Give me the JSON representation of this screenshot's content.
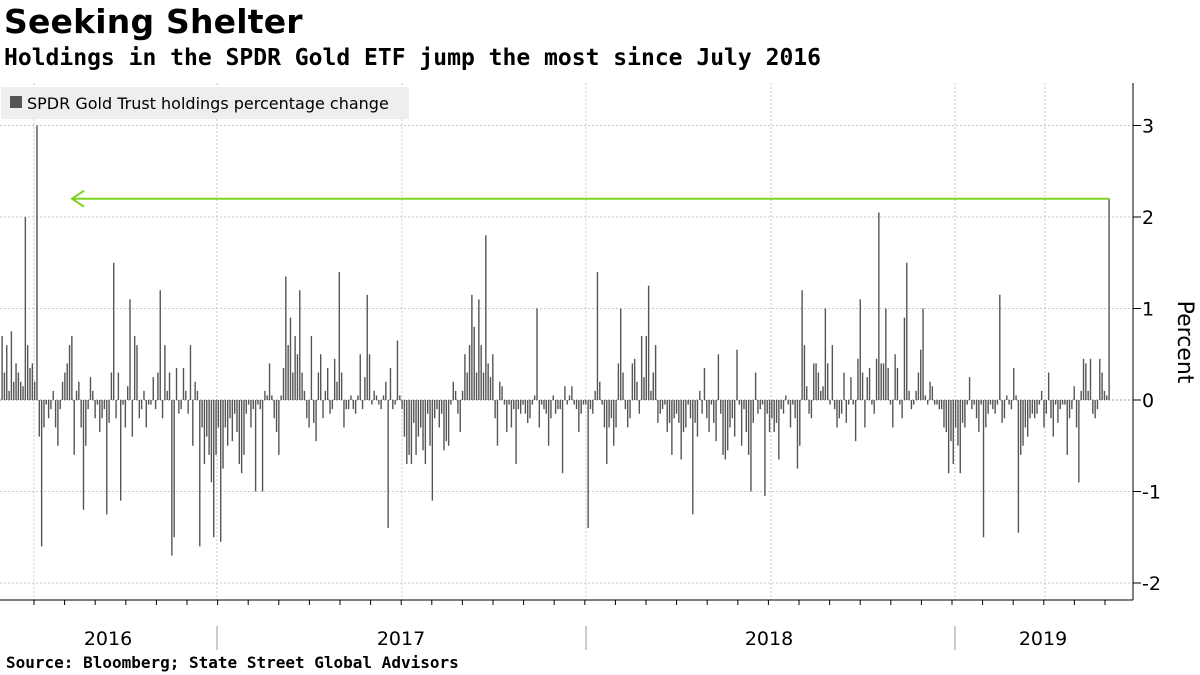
{
  "title": "Seeking Shelter",
  "subtitle": "Holdings in the SPDR Gold ETF jump the most since July 2016",
  "source": "Source: Bloomberg; State Street Global Advisors",
  "colors": {
    "bar": "#555555",
    "arrow": "#7ed321",
    "grid": "#c8c8c8",
    "legend_bg": "#eeeeee"
  },
  "chart_data": {
    "type": "bar",
    "ylabel": "Percent",
    "ylim": [
      -2.2,
      3.5
    ],
    "yticks": [
      3,
      2,
      1,
      0,
      -1,
      -2
    ],
    "ytick_labels": [
      "3",
      "2",
      "1",
      "0",
      "-1",
      "-2"
    ],
    "year_labels": [
      "2016",
      "2017",
      "2018",
      "2019"
    ],
    "legend": [
      "SPDR Gold Trust holdings percentage change"
    ],
    "legend_position": "top-left",
    "grid": true,
    "annotation": {
      "type": "arrow",
      "from_value": 2.2,
      "direction": "left",
      "note": "last bar highlighted"
    },
    "series": [
      {
        "name": "SPDR Gold Trust holdings percentage change",
        "x_start": "2016-01",
        "x_end": "2019-06",
        "values": [
          0.7,
          0.3,
          0.6,
          0.1,
          0.75,
          0.2,
          0.4,
          0.3,
          0.2,
          0.15,
          2.0,
          0.6,
          0.35,
          0.4,
          0.2,
          3.0,
          -0.4,
          -1.6,
          -0.3,
          -0.05,
          -0.2,
          -0.1,
          0.1,
          -0.3,
          -0.5,
          -0.1,
          0.2,
          0.3,
          0.4,
          0.6,
          0.7,
          -0.6,
          0.1,
          0.2,
          -0.3,
          -1.2,
          -0.5,
          -0.1,
          0.25,
          0.1,
          -0.2,
          -0.05,
          -0.35,
          -0.2,
          -0.1,
          -1.25,
          -0.25,
          0.3,
          1.5,
          -0.2,
          0.3,
          -1.1,
          -0.05,
          -0.3,
          0.15,
          1.1,
          -0.4,
          0.7,
          0.6,
          -0.2,
          -0.1,
          0.1,
          -0.3,
          -0.05,
          -0.05,
          0.25,
          -0.1,
          0.3,
          1.2,
          -0.2,
          0.6,
          0.1,
          0.3,
          -1.7,
          -1.5,
          0.35,
          -0.15,
          -0.1,
          0.35,
          0.1,
          -0.15,
          0.6,
          -0.5,
          0.2,
          0.1,
          -1.6,
          -0.3,
          -0.7,
          -0.4,
          -0.6,
          -0.9,
          -1.5,
          -0.6,
          -0.3,
          -1.55,
          -0.75,
          -0.3,
          -0.5,
          -0.2,
          -0.45,
          -0.15,
          -0.35,
          -0.7,
          -0.8,
          -0.6,
          -0.15,
          -0.05,
          -0.3,
          -0.1,
          -1.0,
          -0.05,
          -0.1,
          -1.0,
          0.1,
          0.05,
          0.4,
          0.05,
          -0.2,
          -0.35,
          -0.6,
          0.05,
          0.35,
          1.35,
          0.6,
          0.9,
          0.3,
          0.7,
          0.5,
          1.2,
          0.3,
          0.1,
          -0.2,
          -0.3,
          0.7,
          -0.25,
          -0.45,
          0.3,
          0.5,
          -0.2,
          0.1,
          0.35,
          -0.15,
          -0.1,
          0.45,
          0.2,
          1.4,
          0.3,
          -0.3,
          -0.1,
          -0.1,
          0.05,
          -0.1,
          -0.15,
          0.05,
          0.5,
          -0.1,
          0.25,
          1.15,
          0.5,
          -0.05,
          0.1,
          0.05,
          -0.05,
          -0.1,
          0.05,
          0.2,
          -1.4,
          0.35,
          -0.1,
          -0.05,
          0.65,
          0.05,
          -0.1,
          -0.4,
          -0.7,
          -0.6,
          -0.7,
          -0.25,
          -0.6,
          -0.4,
          -0.3,
          -0.55,
          -0.7,
          -0.15,
          -0.5,
          -1.1,
          -0.2,
          -0.1,
          -0.3,
          -0.15,
          -0.55,
          -0.45,
          -0.5,
          -0.05,
          0.2,
          0.1,
          -0.15,
          -0.35,
          0.1,
          0.5,
          0.3,
          0.6,
          1.15,
          0.8,
          0.3,
          1.1,
          0.6,
          0.3,
          1.8,
          0.4,
          0.25,
          0.5,
          -0.2,
          -0.5,
          0.2,
          0.15,
          -0.05,
          -0.35,
          -0.05,
          -0.3,
          -0.1,
          -0.7,
          -0.1,
          -0.15,
          -0.05,
          -0.15,
          -0.25,
          -0.2,
          -0.05,
          0.05,
          1.0,
          -0.3,
          -0.05,
          -0.1,
          -0.15,
          -0.5,
          -0.2,
          0.05,
          -0.15,
          -0.1,
          -0.1,
          -0.8,
          0.15,
          -0.05,
          0.05,
          0.15,
          -0.05,
          -0.1,
          -0.35,
          -0.15,
          -0.05,
          -0.05,
          -1.4,
          -0.1,
          -0.15,
          0.1,
          1.4,
          0.2,
          -0.05,
          -0.3,
          -0.7,
          -0.3,
          -0.2,
          -0.5,
          -0.3,
          0.4,
          1.0,
          0.3,
          -0.1,
          -0.3,
          -0.2,
          0.4,
          0.45,
          0.2,
          -0.15,
          0.7,
          0.25,
          0.7,
          1.25,
          0.1,
          0.3,
          0.6,
          -0.25,
          -0.15,
          -0.1,
          -0.05,
          -0.35,
          -0.25,
          -0.6,
          -0.2,
          -0.15,
          -0.25,
          -0.65,
          -0.35,
          -0.3,
          -0.05,
          -0.2,
          -1.25,
          -0.25,
          -0.4,
          0.1,
          -0.15,
          0.35,
          -0.2,
          -0.35,
          -0.05,
          -0.25,
          -0.45,
          0.5,
          -0.15,
          -0.6,
          -0.65,
          -0.55,
          -0.3,
          -0.2,
          -0.4,
          0.55,
          -0.05,
          -0.5,
          -0.1,
          -0.35,
          -0.6,
          -1.0,
          -0.25,
          0.3,
          -0.15,
          -0.1,
          -0.05,
          -1.05,
          -0.15,
          -0.35,
          -0.2,
          -0.35,
          -0.25,
          -0.65,
          -0.1,
          -0.15,
          0.05,
          -0.05,
          -0.3,
          -0.05,
          -0.2,
          -0.75,
          -0.5,
          1.2,
          0.6,
          0.15,
          -0.15,
          -0.2,
          0.4,
          0.4,
          0.3,
          0.1,
          0.15,
          1.0,
          0.4,
          -0.05,
          0.6,
          -0.1,
          -0.3,
          -0.2,
          -0.15,
          0.3,
          -0.25,
          -0.05,
          0.25,
          -0.05,
          -0.45,
          0.45,
          1.1,
          0.3,
          -0.3,
          0.25,
          0.35,
          -0.05,
          -0.15,
          0.45,
          2.05,
          0.4,
          0.4,
          1.0,
          0.35,
          -0.05,
          -0.3,
          0.5,
          0.35,
          -0.05,
          -0.2,
          0.9,
          1.5,
          0.1,
          -0.1,
          -0.05,
          0.1,
          0.3,
          0.55,
          1.0,
          0.05,
          -0.05,
          0.2,
          0.15,
          -0.05,
          -0.05,
          -0.1,
          -0.1,
          -0.3,
          -0.35,
          -0.8,
          -0.45,
          -0.7,
          -0.3,
          -0.5,
          -0.8,
          -0.25,
          -0.3,
          -0.05,
          0.25,
          -0.1,
          -0.05,
          -0.2,
          -0.35,
          -0.05,
          -1.5,
          -0.3,
          -0.15,
          -0.05,
          -0.1,
          -0.15,
          -0.05,
          1.15,
          -0.25,
          -0.2,
          0.05,
          -0.05,
          -0.1,
          0.35,
          0.05,
          -1.45,
          -0.6,
          -0.5,
          -0.3,
          -0.4,
          -0.2,
          -0.15,
          -0.2,
          -0.15,
          -0.05,
          0.1,
          -0.3,
          -0.15,
          0.3,
          -0.2,
          -0.4,
          -0.05,
          -0.25,
          -0.1,
          -0.05,
          -0.05,
          -0.6,
          -0.2,
          -0.1,
          0.15,
          -0.3,
          -0.9,
          0.1,
          0.45,
          0.4,
          0.1,
          0.45,
          -0.15,
          -0.2,
          -0.1,
          0.45,
          0.3,
          0.1,
          0.05,
          2.2
        ]
      }
    ]
  }
}
